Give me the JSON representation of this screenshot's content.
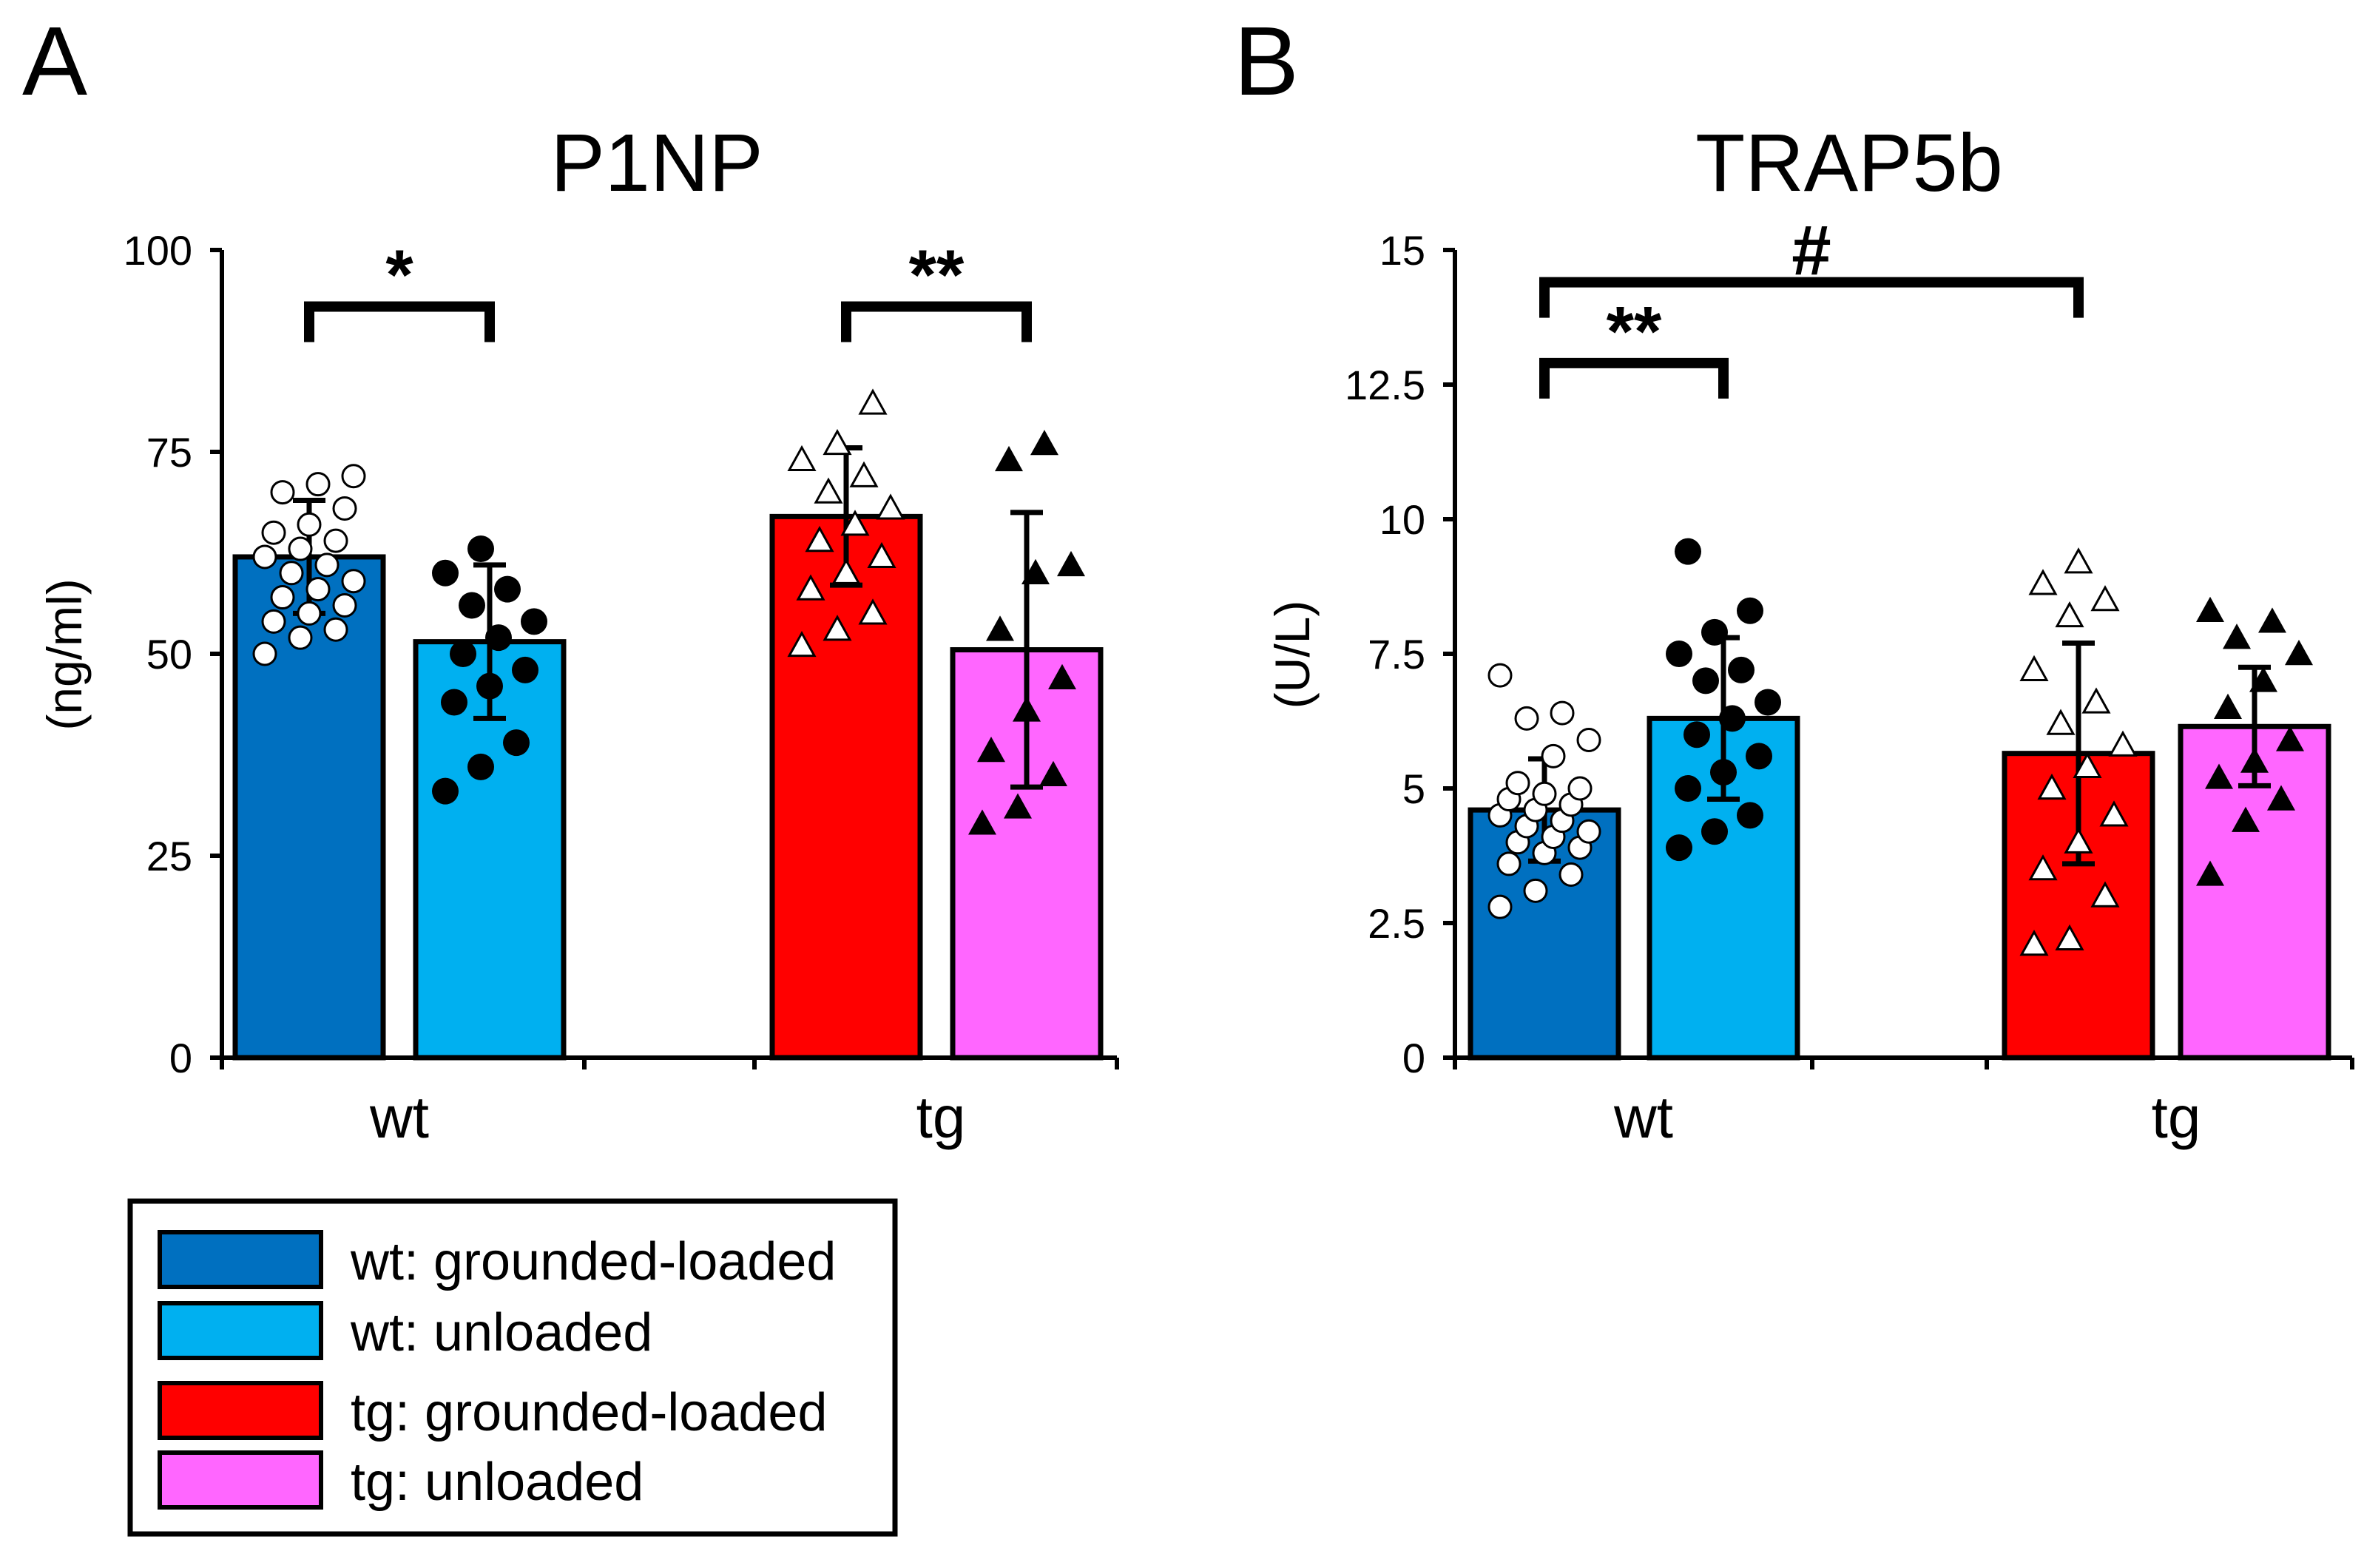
{
  "chart_data": [
    {
      "panel": "A",
      "type": "bar",
      "title": "P1NP",
      "xlabel": "",
      "ylabel": "(ng/ml)",
      "ylim": [
        0,
        100
      ],
      "yticks": [
        0,
        25,
        50,
        75,
        100
      ],
      "categories": [
        "wt",
        "tg"
      ],
      "series": [
        {
          "name": "wt: grounded-loaded",
          "group": "wt",
          "value": 62,
          "sd": 7,
          "color": "#0070C0",
          "marker": "open-circle",
          "points": [
            50,
            52,
            53,
            54,
            55,
            56,
            57,
            58,
            59,
            60,
            61,
            62,
            63,
            64,
            65,
            66,
            68,
            70,
            71,
            72
          ]
        },
        {
          "name": "wt: unloaded",
          "group": "wt",
          "value": 51.5,
          "sd": 9.5,
          "color": "#00B0F0",
          "marker": "filled-circle",
          "points": [
            33,
            36,
            39,
            44,
            46,
            48,
            50,
            52,
            54,
            56,
            58,
            60,
            63
          ]
        },
        {
          "name": "tg: grounded-loaded",
          "group": "tg",
          "value": 67,
          "sd": 8.5,
          "color": "#FF0000",
          "marker": "open-triangle",
          "points": [
            51,
            53,
            55,
            58,
            60,
            62,
            64,
            66,
            68,
            70,
            72,
            74,
            76,
            81
          ]
        },
        {
          "name": "tg: unloaded",
          "group": "tg",
          "value": 50.5,
          "sd": 17,
          "color": "#FF66FF",
          "marker": "filled-triangle",
          "points": [
            29,
            31,
            35,
            38,
            43,
            47,
            53,
            60,
            61,
            74,
            76
          ]
        }
      ],
      "significance": [
        {
          "label": "*",
          "from": 0,
          "to": 1,
          "y": 93
        },
        {
          "label": "**",
          "from": 2,
          "to": 3,
          "y": 93
        }
      ]
    },
    {
      "panel": "B",
      "type": "bar",
      "title": "TRAP5b",
      "xlabel": "",
      "ylabel": "(U/L)",
      "ylim": [
        0,
        15
      ],
      "yticks": [
        0,
        2.5,
        5,
        7.5,
        10,
        12.5,
        15
      ],
      "yticklabels": [
        "0",
        "2.5",
        "5",
        "7.5",
        "10",
        "12.5",
        "15"
      ],
      "categories": [
        "wt",
        "tg"
      ],
      "series": [
        {
          "name": "wt: grounded-loaded",
          "group": "wt",
          "value": 4.6,
          "sd": 0.95,
          "color": "#0070C0",
          "marker": "open-circle",
          "points": [
            2.8,
            3.1,
            3.4,
            3.6,
            3.8,
            3.9,
            4.0,
            4.1,
            4.2,
            4.3,
            4.4,
            4.5,
            4.6,
            4.7,
            4.8,
            4.9,
            5.0,
            5.1,
            5.6,
            5.9,
            6.3,
            6.4,
            7.1
          ]
        },
        {
          "name": "wt: unloaded",
          "group": "wt",
          "value": 6.3,
          "sd": 1.5,
          "color": "#00B0F0",
          "marker": "filled-circle",
          "points": [
            3.9,
            4.2,
            4.5,
            5.0,
            5.3,
            5.6,
            6.0,
            6.3,
            6.6,
            7.0,
            7.2,
            7.5,
            7.9,
            8.3,
            9.4
          ]
        },
        {
          "name": "tg: grounded-loaded",
          "group": "tg",
          "value": 5.65,
          "sd": 2.05,
          "color": "#FF0000",
          "marker": "open-triangle",
          "points": [
            2.1,
            2.2,
            3.0,
            3.5,
            4.0,
            4.5,
            5.0,
            5.4,
            5.8,
            6.2,
            6.6,
            7.2,
            8.2,
            8.5,
            8.8,
            9.2
          ]
        },
        {
          "name": "tg: unloaded",
          "group": "tg",
          "value": 6.15,
          "sd": 1.1,
          "color": "#FF66FF",
          "marker": "filled-triangle",
          "points": [
            3.4,
            4.4,
            4.8,
            5.2,
            5.5,
            5.9,
            6.5,
            7.0,
            7.5,
            7.8,
            8.1,
            8.3
          ]
        }
      ],
      "significance": [
        {
          "label": "**",
          "from": 0,
          "to": 1,
          "y": 12.9
        },
        {
          "label": "#",
          "from": 0,
          "to": 2,
          "y": 14.4
        }
      ]
    }
  ],
  "legend": {
    "position": "bottom-left",
    "items": [
      {
        "label": "wt: grounded-loaded",
        "color": "#0070C0"
      },
      {
        "label": "wt: unloaded",
        "color": "#00B0F0"
      },
      {
        "label": "tg: grounded-loaded",
        "color": "#FF0000"
      },
      {
        "label": "tg: unloaded",
        "color": "#FF66FF"
      }
    ]
  }
}
